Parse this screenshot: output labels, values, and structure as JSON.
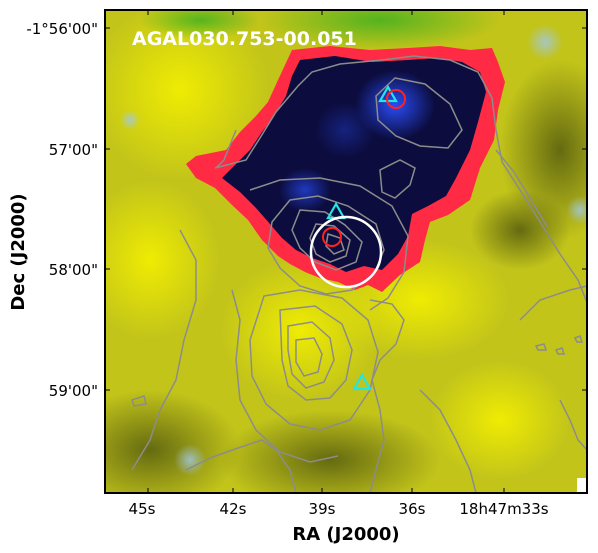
{
  "figure": {
    "title": "AGAL030.753-00.051",
    "xlabel": "RA (J2000)",
    "ylabel": "Dec (J2000)",
    "x_ticks": [
      "45s",
      "42s",
      "39s",
      "36s",
      "18h47m33s"
    ],
    "y_ticks": [
      "-1°56'00\"",
      "57'00\"",
      "58'00\"",
      "59'00\""
    ],
    "colors": {
      "background": "#c7c81a",
      "cavity": "#0a0a3a",
      "rim": "#ff2040",
      "contour": "#8a8a8a",
      "triangle_marker": "#22e6e6",
      "circle_marker_small": "#ff2020",
      "circle_marker_large": "#ffffff"
    },
    "markers": [
      {
        "type": "triangle",
        "color": "cyan"
      },
      {
        "type": "triangle",
        "color": "cyan"
      },
      {
        "type": "triangle",
        "color": "cyan"
      },
      {
        "type": "circle",
        "color": "red"
      },
      {
        "type": "circle",
        "color": "red"
      },
      {
        "type": "circle",
        "color": "white"
      }
    ]
  }
}
